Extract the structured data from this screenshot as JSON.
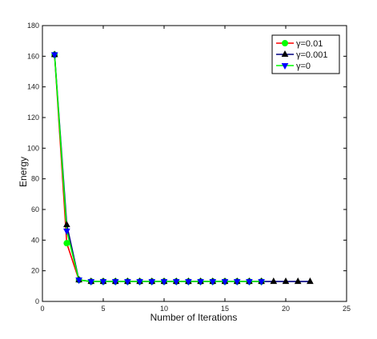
{
  "chart_data": {
    "type": "line",
    "title": "",
    "xlabel": "Number of Iterations",
    "ylabel": "Energy",
    "xlim": [
      0,
      25
    ],
    "ylim": [
      0,
      180
    ],
    "xticks": [
      0,
      5,
      10,
      15,
      20,
      25
    ],
    "yticks": [
      0,
      20,
      40,
      60,
      80,
      100,
      120,
      140,
      160,
      180
    ],
    "grid": false,
    "legend_position": "top-right",
    "series": [
      {
        "name": "γ=0.01",
        "color": "#ff0000",
        "marker_color": "#00ff00",
        "marker": "circle",
        "x": [
          1,
          2,
          3,
          4,
          5,
          6,
          7,
          8,
          9,
          10,
          11,
          12,
          13,
          14,
          15,
          16,
          17,
          18
        ],
        "y": [
          161,
          38,
          14,
          13,
          13,
          13,
          13,
          13,
          13,
          13,
          13,
          13,
          13,
          13,
          13,
          13,
          13,
          13
        ]
      },
      {
        "name": "γ=0.001",
        "color": "#000080",
        "marker_color": "#000000",
        "marker": "triangle-up",
        "x": [
          1,
          2,
          3,
          4,
          5,
          6,
          7,
          8,
          9,
          10,
          11,
          12,
          13,
          14,
          15,
          16,
          17,
          18,
          19,
          20,
          21,
          22
        ],
        "y": [
          161,
          50,
          14,
          13,
          13,
          13,
          13,
          13,
          13,
          13,
          13,
          13,
          13,
          13,
          13,
          13,
          13,
          13,
          13,
          13,
          13,
          13
        ]
      },
      {
        "name": "γ=0",
        "color": "#00ff00",
        "marker_color": "#0000ff",
        "marker": "triangle-down",
        "x": [
          1,
          2,
          3,
          4,
          5,
          6,
          7,
          8,
          9,
          10,
          11,
          12,
          13,
          14,
          15,
          16,
          17,
          18
        ],
        "y": [
          161,
          46,
          14,
          13,
          13,
          13,
          13,
          13,
          13,
          13,
          13,
          13,
          13,
          13,
          13,
          13,
          13,
          13
        ]
      }
    ]
  }
}
